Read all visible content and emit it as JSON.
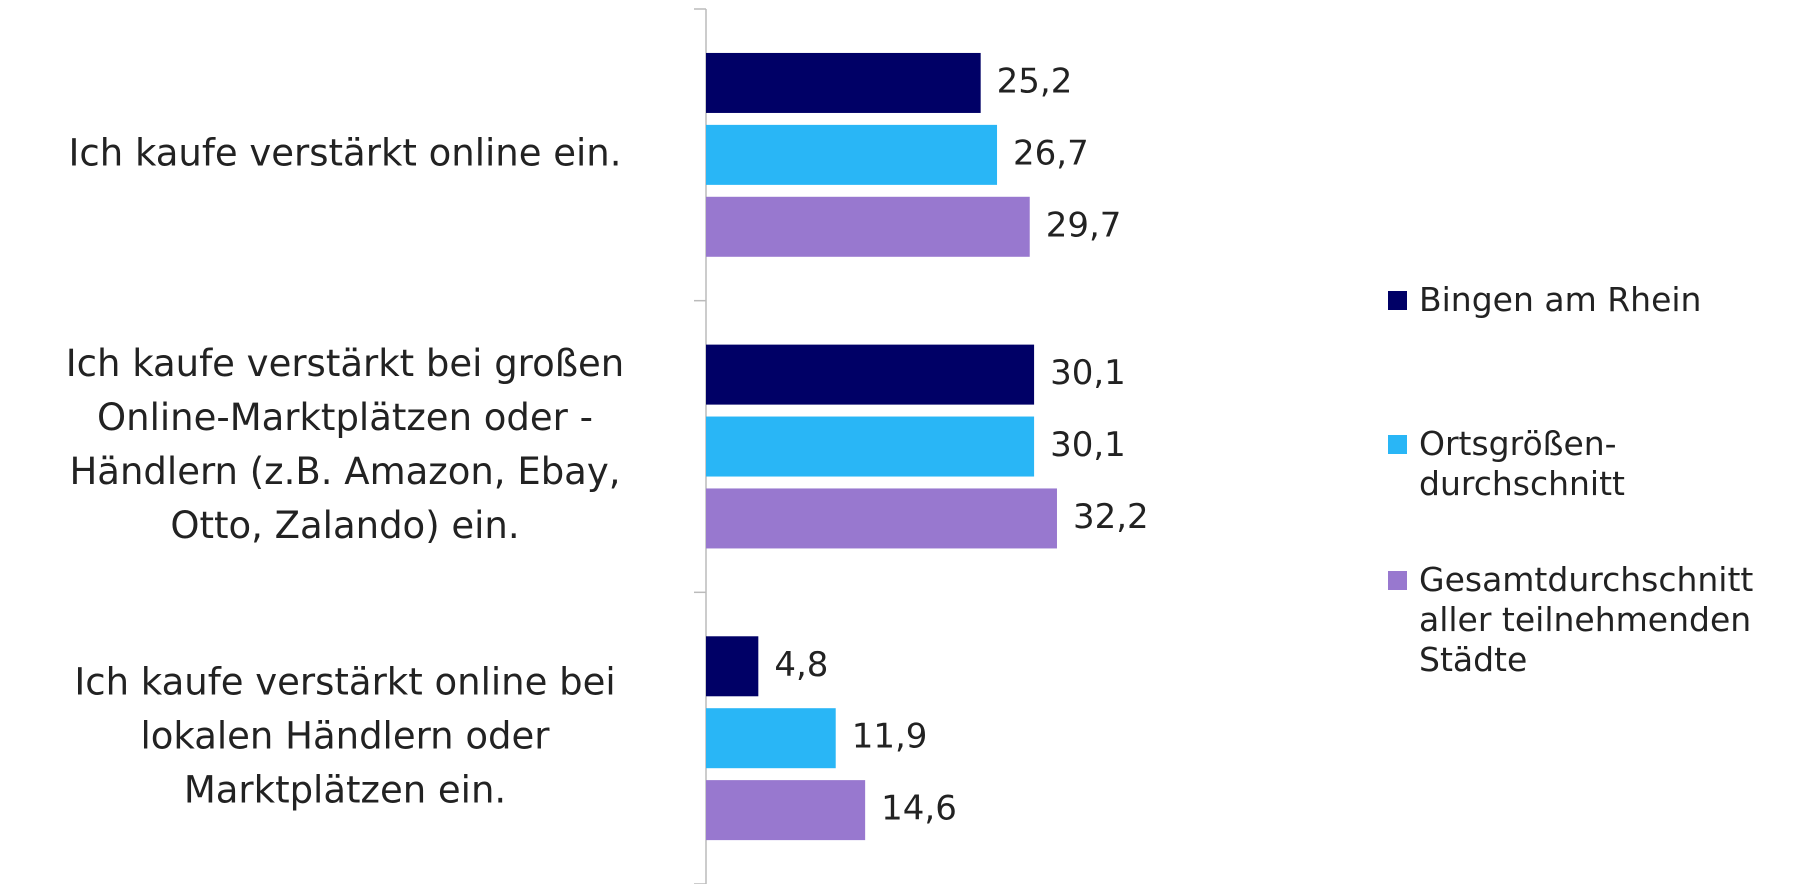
{
  "chart_data": {
    "type": "hbar",
    "categories": [
      [
        "Ich kaufe verstärkt online ein."
      ],
      [
        "Ich kaufe verstärkt bei großen",
        "Online-Marktplätzen oder -",
        "Händlern (z.B. Amazon, Ebay,",
        "Otto, Zalando) ein."
      ],
      [
        "Ich kaufe verstärkt online bei",
        "lokalen Händlern oder",
        "Marktplätzen ein."
      ]
    ],
    "series": [
      {
        "name": "Bingen am Rhein",
        "color": "#000066",
        "values": [
          25.2,
          30.1,
          4.8
        ],
        "value_labels": [
          "25,2",
          "30,1",
          "4,8"
        ]
      },
      {
        "name": "Ortsgrößen-durchschnitt",
        "color": "#29b6f6",
        "values": [
          26.7,
          30.1,
          11.9
        ],
        "value_labels": [
          "26,7",
          "30,1",
          "11,9"
        ]
      },
      {
        "name": "Gesamtdurchschnitt aller teilnehmenden Städte",
        "color": "#9878cf",
        "values": [
          29.7,
          32.2,
          14.6
        ],
        "value_labels": [
          "29,7",
          "32,2",
          "14,6"
        ]
      }
    ],
    "xlim": [
      0,
      60
    ],
    "legend": "right"
  }
}
